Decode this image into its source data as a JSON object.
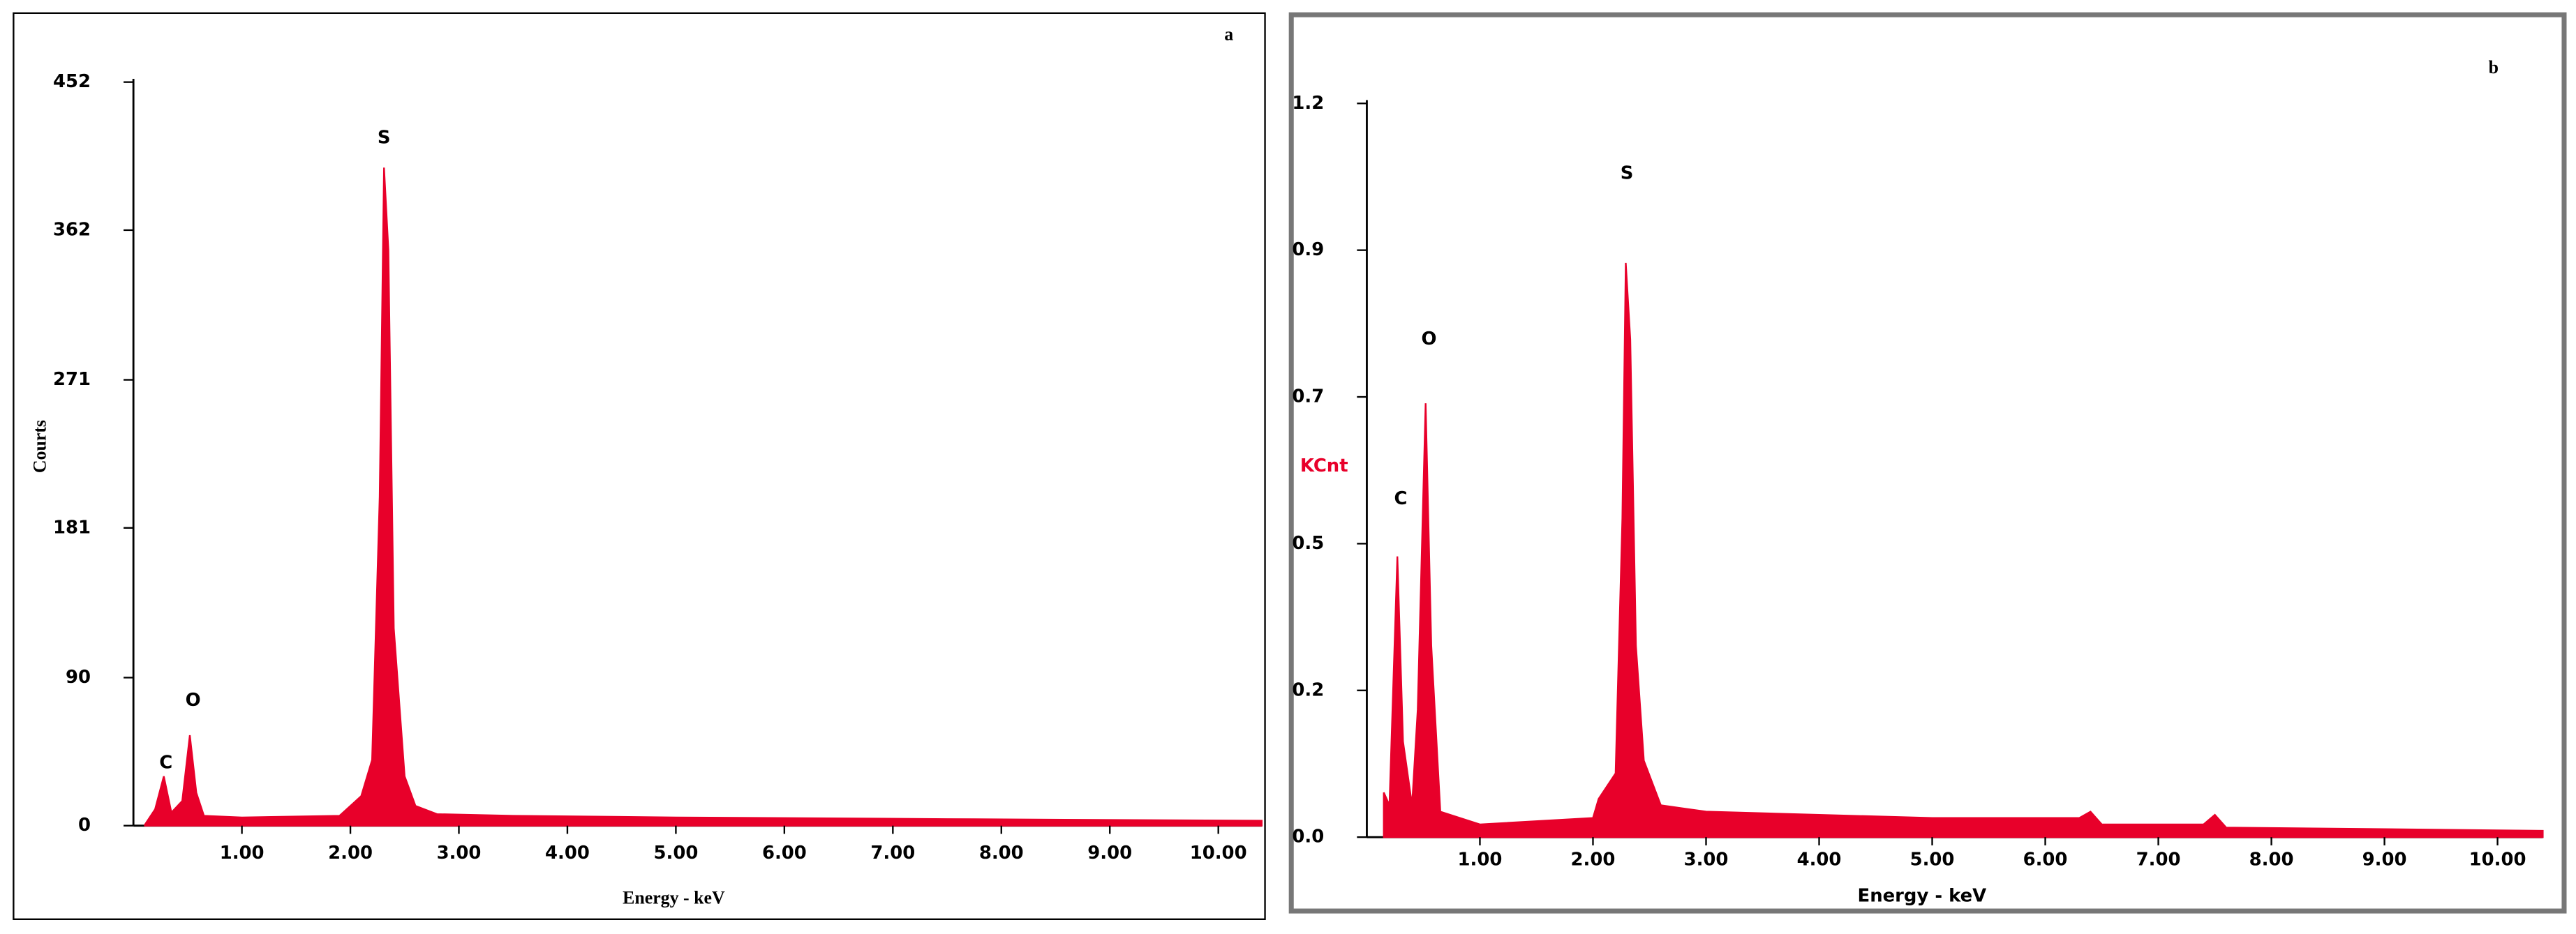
{
  "chart_data": [
    {
      "type": "area",
      "title": "a",
      "ylabel": "Courts",
      "xlabel": "Energy - keV",
      "color": "#e8002a",
      "x": [
        0.1,
        0.2,
        0.28,
        0.35,
        0.45,
        0.52,
        0.58,
        0.65,
        1.0,
        1.9,
        2.0,
        2.1,
        2.2,
        2.27,
        2.31,
        2.35,
        2.4,
        2.5,
        2.6,
        2.8,
        3.5,
        5.0,
        7.5,
        10.4
      ],
      "values": [
        0,
        10,
        30,
        8,
        15,
        55,
        20,
        6,
        5,
        6,
        12,
        18,
        40,
        200,
        400,
        350,
        120,
        30,
        12,
        7,
        6,
        5,
        4,
        3
      ],
      "xlim": [
        0,
        10.4
      ],
      "ylim": [
        0,
        452
      ],
      "xticks": [
        {
          "value": 1,
          "label": "1.00"
        },
        {
          "value": 2,
          "label": "2.00"
        },
        {
          "value": 3,
          "label": "3.00"
        },
        {
          "value": 4,
          "label": "4.00"
        },
        {
          "value": 5,
          "label": "5.00"
        },
        {
          "value": 6,
          "label": "6.00"
        },
        {
          "value": 7,
          "label": "7.00"
        },
        {
          "value": 8,
          "label": "8.00"
        },
        {
          "value": 9,
          "label": "9.00"
        },
        {
          "value": 10,
          "label": "10.00"
        }
      ],
      "yticks": [
        0,
        90,
        181,
        271,
        362,
        452
      ],
      "annotations": [
        {
          "text": "C",
          "x": 0.3,
          "y": 38
        },
        {
          "text": "O",
          "x": 0.55,
          "y": 76
        },
        {
          "text": "S",
          "x": 2.31,
          "y": 418
        }
      ]
    },
    {
      "type": "area",
      "title": "b",
      "ylabel": "KCnt",
      "xlabel": "Energy - keV",
      "color": "#e8002a",
      "x": [
        0.15,
        0.2,
        0.27,
        0.32,
        0.4,
        0.45,
        0.52,
        0.57,
        0.65,
        1.0,
        2.0,
        2.05,
        2.2,
        2.26,
        2.29,
        2.33,
        2.38,
        2.45,
        2.6,
        3.0,
        4.0,
        5.0,
        6.3,
        6.4,
        6.5,
        7.4,
        7.5,
        7.6,
        10.4
      ],
      "values": [
        0.07,
        0.05,
        0.44,
        0.15,
        0.05,
        0.2,
        0.68,
        0.3,
        0.04,
        0.02,
        0.03,
        0.06,
        0.1,
        0.5,
        0.9,
        0.78,
        0.3,
        0.12,
        0.05,
        0.04,
        0.035,
        0.03,
        0.03,
        0.04,
        0.02,
        0.02,
        0.035,
        0.015,
        0.01
      ],
      "xlim": [
        0,
        10.4
      ],
      "ylim": [
        0,
        1.15
      ],
      "xticks": [
        {
          "value": 1,
          "label": "1.00"
        },
        {
          "value": 2,
          "label": "2.00"
        },
        {
          "value": 3,
          "label": "3.00"
        },
        {
          "value": 4,
          "label": "4.00"
        },
        {
          "value": 5,
          "label": "5.00"
        },
        {
          "value": 6,
          "label": "6.00"
        },
        {
          "value": 7,
          "label": "7.00"
        },
        {
          "value": 8,
          "label": "8.00"
        },
        {
          "value": 9,
          "label": "9.00"
        },
        {
          "value": 10,
          "label": "10.00"
        }
      ],
      "yticks": [
        {
          "value": 0,
          "label": "0.0"
        },
        {
          "value": 0.23,
          "label": "0.2"
        },
        {
          "value": 0.46,
          "label": "0.5"
        },
        {
          "value": 0.69,
          "label": "0.7"
        },
        {
          "value": 0.92,
          "label": "0.9"
        },
        {
          "value": 1.15,
          "label": "1.2"
        }
      ],
      "annotations": [
        {
          "text": "C",
          "x": 0.3,
          "y": 0.53
        },
        {
          "text": "O",
          "x": 0.55,
          "y": 0.78
        },
        {
          "text": "S",
          "x": 2.3,
          "y": 1.04
        }
      ]
    }
  ]
}
